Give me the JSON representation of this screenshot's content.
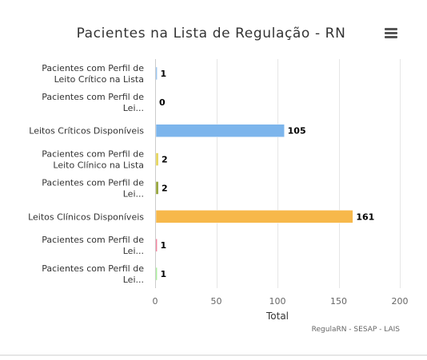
{
  "chart_data": {
    "type": "bar",
    "orientation": "horizontal",
    "title": "Pacientes na Lista de Regulação - RN",
    "xlabel": "Total",
    "credits": "RegulaRN - SESAP - LAIS",
    "xlim": [
      0,
      200
    ],
    "ticks": [
      0,
      50,
      100,
      150,
      200
    ],
    "grid": true,
    "legend": "none",
    "categories": [
      "Pacientes com Perfil de Leito Crítico na Lista",
      "Pacientes com Perfil de Lei...",
      "Leitos Críticos Disponíveis",
      "Pacientes com Perfil de Leito Clínico na Lista",
      "Pacientes com Perfil de Lei...",
      "Leitos Clínicos Disponíveis",
      "Pacientes com Perfil de Lei...",
      "Pacientes com Perfil de Lei..."
    ],
    "values": [
      1,
      0,
      105,
      2,
      2,
      161,
      1,
      1
    ],
    "colors": [
      "#7cb5ec",
      "#434348",
      "#7cb5ec",
      "#e4d354",
      "#90a030",
      "#f7b84b",
      "#f15c80",
      "#90ed7d"
    ]
  },
  "menu": {
    "icon": "hamburger-menu-icon"
  }
}
